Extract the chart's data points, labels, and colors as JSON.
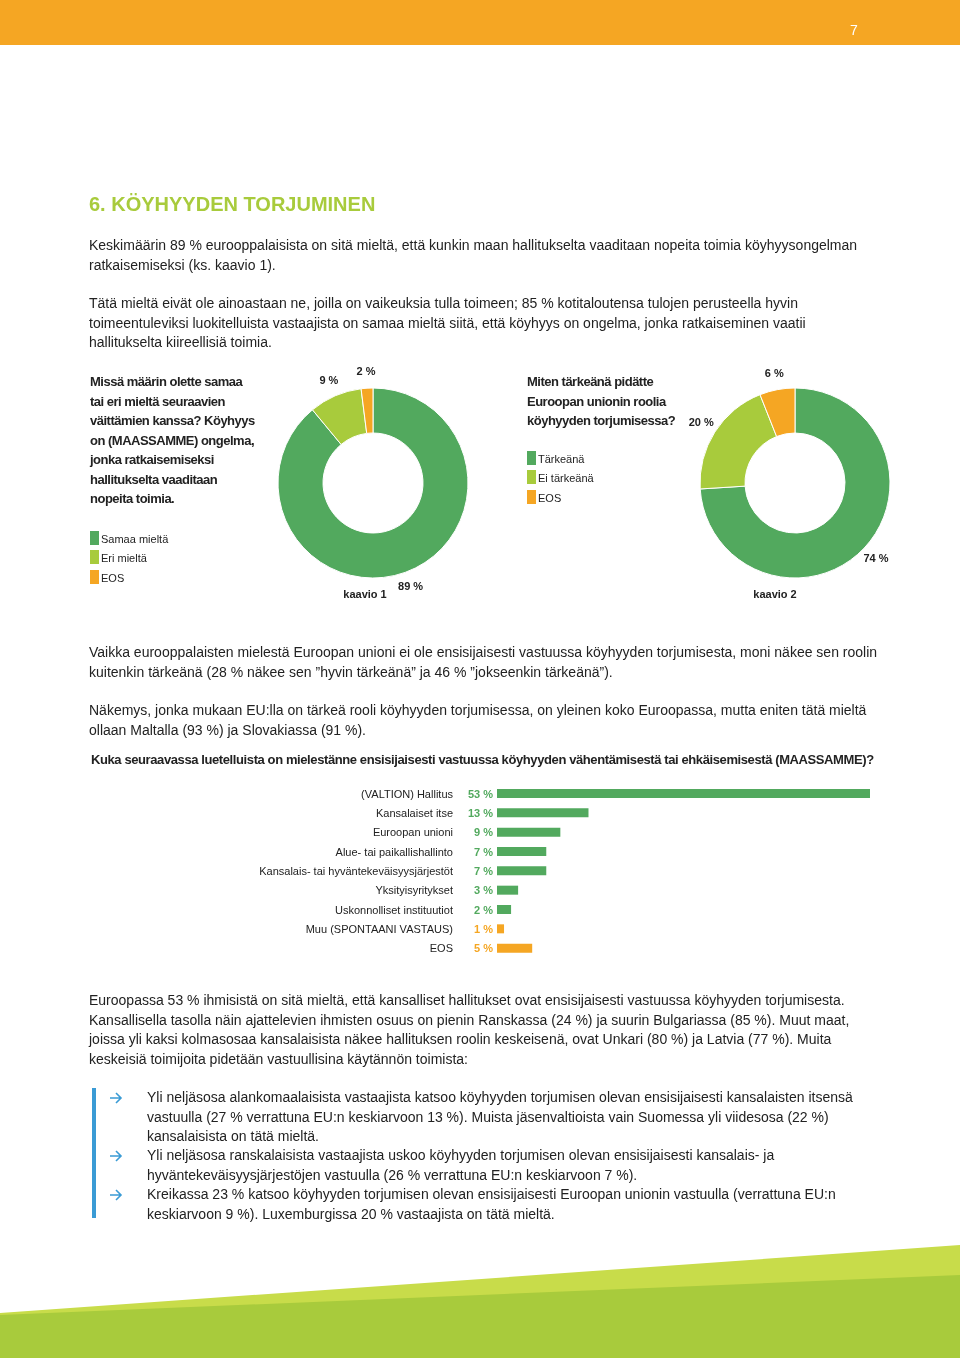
{
  "chart_data": [
    {
      "type": "donut",
      "title": "Missä määrin olette samaa tai eri mieltä seuraavien väittämien kanssa? Köyhyys on (MAASSAMME) ongelma, jonka ratkaisemiseksi hallitukselta vaaditaan nopeita toimia.",
      "categories": [
        "Samaa mieltä",
        "Eri mieltä",
        "EOS"
      ],
      "values": [
        89,
        9,
        2
      ],
      "colors": [
        "#52a95e",
        "#a8cb3c",
        "#f5a623"
      ],
      "value_labels": [
        "89 %",
        "9 %",
        "2 %"
      ],
      "legend": "left",
      "annotations": [
        "7",
        "6. KÖYHYYDEN TORJUMINEN",
        "Keskimäärin 89 % eurooppalaisista on sitä mieltä, että kunkin maan hallitukselta vaaditaan nopeita toimia köyhyysongelman ratkaisemiseksi (ks. kaavio 1).",
        "Tätä mieltä eivät ole ainoastaan ne, joilla on vaikeuksia tulla toimeen; 85 % kotitaloutensa tulojen perusteella hyvin toimeentuleviksi luokitelluista vastaajista on samaa mieltä siitä, että köyhyys on ongelma, jonka ratkaiseminen vaatii hallitukselta kiireellisiä toimia.",
        "kaavio 1"
      ]
    },
    {
      "type": "donut",
      "title": "Miten tärkeänä pidätte Euroopan unionin roolia köyhyyden torjumisessa?",
      "categories": [
        "Tärkeänä",
        "Ei tärkeänä",
        "EOS"
      ],
      "values": [
        74,
        20,
        6
      ],
      "colors": [
        "#52a95e",
        "#a8cb3c",
        "#f5a623"
      ],
      "value_labels": [
        "74 %",
        "20 %",
        "6 %"
      ],
      "legend": "left",
      "annotations": [
        "kaavio 2",
        "Vaikka eurooppalaisten mielestä Euroopan unioni ei ole ensisijaisesti vastuussa köyhyyden torjumisesta, moni näkee sen roolin kuitenkin tärkeänä (28 % näkee sen ”hyvin tärkeänä” ja 46 % ”jokseenkin tärkeänä”).",
        "Näkemys, jonka mukaan EU:lla on tärkeä rooli köyhyyden torjumisessa, on yleinen koko Euroopassa, mutta eniten tätä mieltä ollaan Maltalla (93 %) ja Slovakiassa (91 %)."
      ]
    },
    {
      "type": "bar",
      "orientation": "horizontal",
      "title": "Kuka seuraavassa luetelluista on mielestänne ensisijaisesti vastuussa köyhyyden vähentämisestä tai ehkäisemisestä (MAASSAMME)?",
      "categories": [
        "(VALTION) Hallitus",
        "Kansalaiset itse",
        "Euroopan unioni",
        "Alue- tai paikallishallinto",
        "Kansalais- tai hyväntekeväisyysjärjestöt",
        "Yksityisyritykset",
        "Uskonnolliset instituutiot",
        "Muu (SPONTAANI VASTAUS)",
        "EOS"
      ],
      "values": [
        53,
        13,
        9,
        7,
        7,
        3,
        2,
        1,
        5
      ],
      "colors": [
        "#52a95e",
        "#52a95e",
        "#52a95e",
        "#52a95e",
        "#52a95e",
        "#52a95e",
        "#52a95e",
        "#f5a623",
        "#f5a623"
      ],
      "value_labels": [
        "53 %",
        "13 %",
        "9 %",
        "7 %",
        "7 %",
        "3 %",
        "2 %",
        "1 %",
        "5 %"
      ],
      "tick_labels": "y",
      "annotations": [
        "Euroopassa 53 % ihmisistä on sitä mieltä, että kansalliset hallitukset ovat ensisijaisesti vastuussa köyhyyden torjumisesta. Kansallisella tasolla näin ajattelevien ihmisten osuus on pienin Ranskassa (24 %) ja suurin Bulgariassa (85 %). Muut maat, joissa yli kaksi kolmasosaa kansalaisista näkee hallituksen roolin keskeisenä, ovat Unkari (80 %) ja Latvia (77 %). Muita keskeisiä toimijoita pidetään vastuullisina käytännön toimista:",
        "Yli neljäsosa alankomaalaisista vastaajista katsoo köyhyyden torjumisen olevan ensisijaisesti kansalaisten itsensä vastuulla (27 % verrattuna EU:n keskiarvoon 13 %). Muista jäsenvaltioista vain Suomessa yli viidesosa (22 %) kansalaisista on tätä mieltä.",
        "Yli neljäsosa ranskalaisista vastaajista uskoo köyhyyden torjumisen olevan ensisijaisesti kansalais- ja hyväntekeväisyysjärjestöjen vastuulla (26 % verrattuna EU:n keskiarvoon 7 %).",
        "Kreikassa 23 % katsoo köyhyyden torjumisen olevan ensisijaisesti Euroopan unionin vastuulla (verrattuna EU:n keskiarvoon 9 %). Luxemburgissa 20 % vastaajista on tätä mieltä."
      ]
    }
  ]
}
